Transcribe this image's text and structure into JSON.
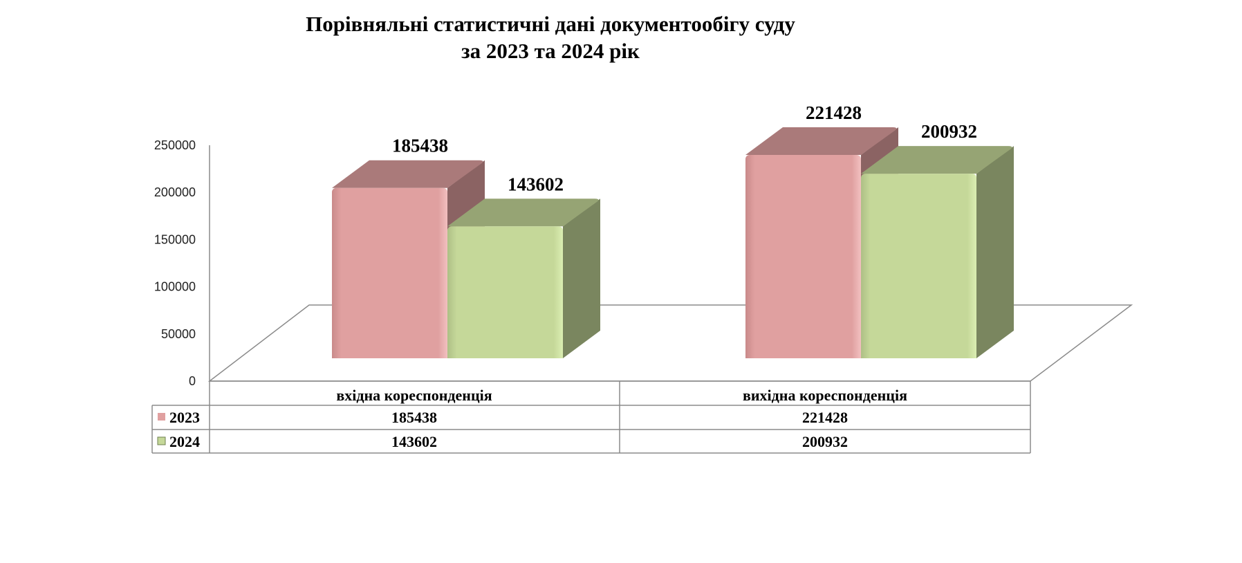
{
  "chart_data": {
    "type": "bar",
    "title": "Порівняльні статистичні дані  документообігу суду",
    "subtitle": "за 2023 та 2024 рік",
    "categories": [
      "вхідна кореспонденція",
      "вихідна кореспонденція"
    ],
    "series": [
      {
        "name": "2023",
        "values": [
          185438,
          221428
        ],
        "color": "#e0a0a0"
      },
      {
        "name": "2024",
        "values": [
          143602,
          200932
        ],
        "color": "#c5d899"
      }
    ],
    "y_ticks": [
      "0",
      "50000",
      "100000",
      "150000",
      "200000",
      "250000"
    ],
    "ylim": [
      0,
      250000
    ],
    "grid": false,
    "legend": "data-table",
    "three_d": true
  }
}
